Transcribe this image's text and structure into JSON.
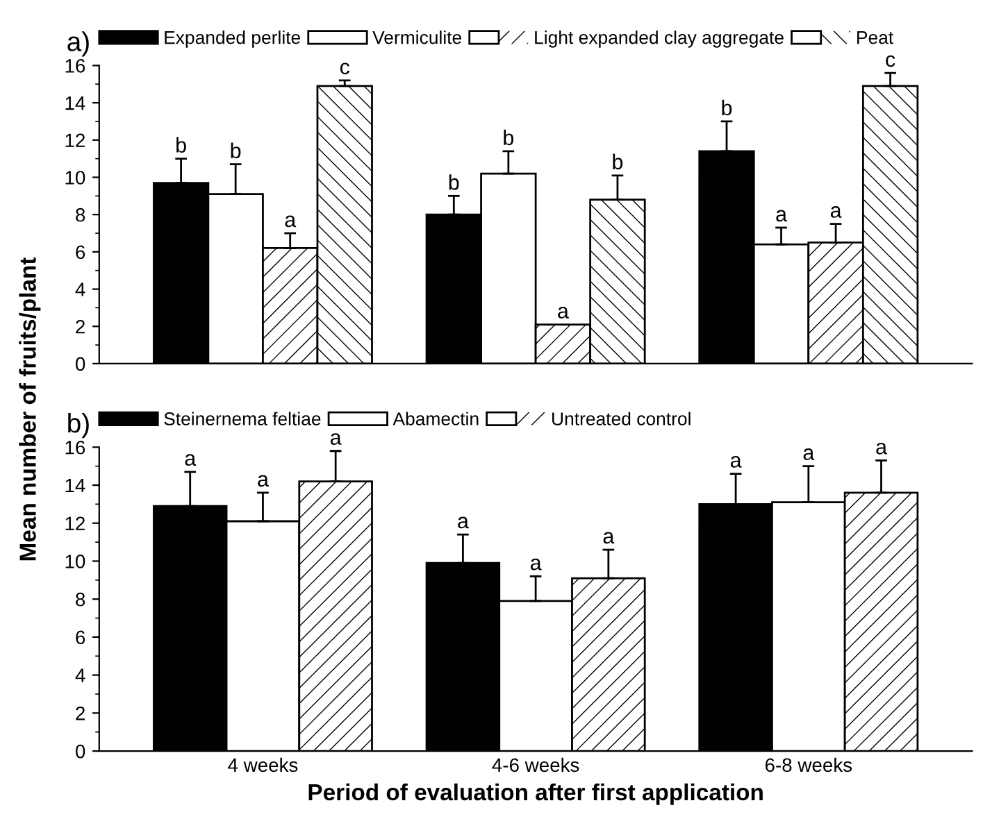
{
  "chart_data": [
    {
      "type": "bar",
      "title": "a)",
      "ylabel": "Mean number of fruits/plant",
      "categories": [
        null,
        null,
        null
      ],
      "ylim": [
        0,
        16
      ],
      "yticks": [
        0,
        2,
        4,
        6,
        8,
        10,
        12,
        14,
        16
      ],
      "tick_labels": "y",
      "legend": "top",
      "grid": false,
      "series": [
        {
          "name": "Expanded perlite",
          "color": "#000000",
          "values": [
            9.7,
            8.0,
            11.4
          ],
          "errors": [
            1.3,
            1.0,
            1.6
          ],
          "value_labels": [
            "b",
            "b",
            "b"
          ]
        },
        {
          "name": "Vermiculite",
          "color": "#ffffff",
          "values": [
            9.1,
            10.2,
            6.4
          ],
          "errors": [
            1.6,
            1.2,
            0.9
          ],
          "value_labels": [
            "b",
            "b",
            "a"
          ]
        },
        {
          "name": "Light expanded clay aggregate",
          "color": "#ffffff",
          "values": [
            6.2,
            2.1,
            6.5
          ],
          "errors": [
            0.8,
            null,
            1.0
          ],
          "value_labels": [
            "a",
            "a",
            "a"
          ]
        },
        {
          "name": "Peat",
          "color": "#ffffff",
          "values": [
            14.9,
            8.8,
            14.9
          ],
          "errors": [
            0.3,
            1.3,
            0.7
          ],
          "value_labels": [
            "c",
            "b",
            "c"
          ]
        }
      ]
    },
    {
      "type": "bar",
      "title": "b)",
      "xlabel": "Period of evaluation after first application",
      "categories": [
        "4 weeks",
        "4-6 weeks",
        "6-8 weeks"
      ],
      "ylim": [
        0,
        16
      ],
      "yticks": [
        0,
        2,
        4,
        6,
        8,
        10,
        12,
        14,
        16
      ],
      "legend": "top",
      "grid": false,
      "series": [
        {
          "name": "Steinernema feltiae",
          "color": "#000000",
          "values": [
            12.9,
            9.9,
            13.0
          ],
          "errors": [
            1.8,
            1.5,
            1.6
          ],
          "value_labels": [
            "a",
            "a",
            "a"
          ]
        },
        {
          "name": "Abamectin",
          "color": "#ffffff",
          "values": [
            12.1,
            7.9,
            13.1
          ],
          "errors": [
            1.5,
            1.3,
            1.9
          ],
          "value_labels": [
            "a",
            "a",
            "a"
          ]
        },
        {
          "name": "Untreated control",
          "color": "#ffffff",
          "values": [
            14.2,
            9.1,
            13.6
          ],
          "errors": [
            1.6,
            1.5,
            1.7
          ],
          "value_labels": [
            "a",
            "a",
            "a"
          ]
        }
      ]
    }
  ]
}
